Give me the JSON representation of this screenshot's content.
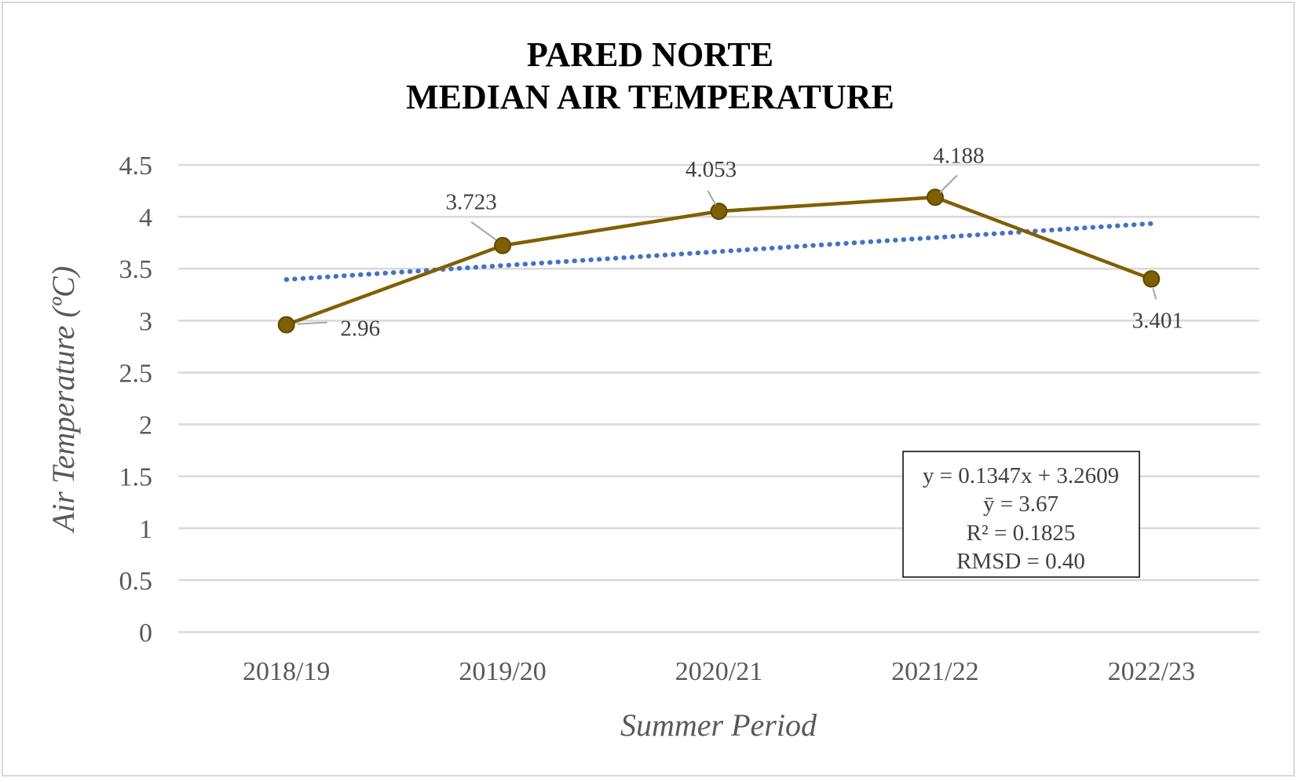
{
  "chart_data": {
    "type": "line",
    "title_line1": "PARED NORTE",
    "title_line2": "MEDIAN AIR TEMPERATURE",
    "xlabel": "Summer Period",
    "ylabel": "Air Temperature (ºC)",
    "categories": [
      "2018/19",
      "2019/20",
      "2020/21",
      "2021/22",
      "2022/23"
    ],
    "series": [
      {
        "values": [
          2.96,
          3.723,
          4.053,
          4.188,
          3.401
        ],
        "color": "#7f6000"
      }
    ],
    "data_labels": [
      "2.96",
      "3.723",
      "4.053",
      "4.188",
      "3.401"
    ],
    "trendline": {
      "slope": 0.1347,
      "intercept": 3.2609,
      "color": "#4472c4",
      "style": "dotted"
    },
    "ylim": [
      0,
      4.5
    ],
    "yticks": [
      "0",
      "0.5",
      "1",
      "1.5",
      "2",
      "2.5",
      "3",
      "3.5",
      "4",
      "4.5"
    ],
    "grid": true,
    "stats_box": [
      "y = 0.1347x + 3.2609",
      "ȳ = 3.67",
      "R² = 0.1825",
      "RMSD = 0.40"
    ]
  }
}
